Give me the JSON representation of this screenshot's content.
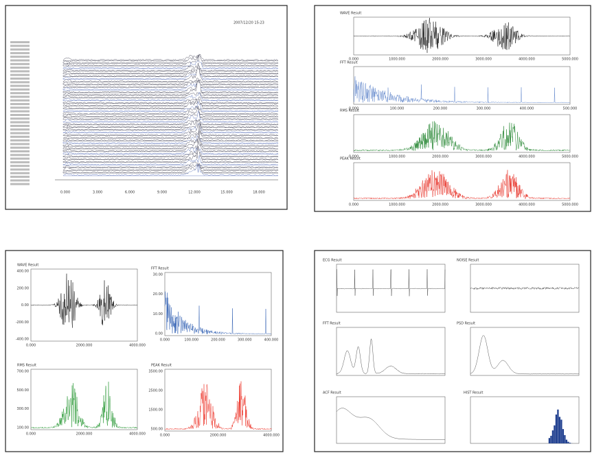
{
  "pages": [
    {
      "header": "2007/12/20 15:23",
      "x_labels": [
        "0.000",
        "3.000",
        "6.000",
        "9.000",
        "12.000",
        "15.000",
        "18.000"
      ]
    },
    {
      "plots": [
        {
          "title": "WAVE Result",
          "x_labels": [
            "0.000",
            "1000.000",
            "2000.000",
            "3000.000",
            "4000.000",
            "5000.000"
          ]
        },
        {
          "title": "FFT Result",
          "x_labels": [
            "0.000",
            "100.000",
            "200.000",
            "300.000",
            "400.000",
            "500.000"
          ]
        },
        {
          "title": "RMS Result",
          "x_labels": [
            "0.000",
            "1000.000",
            "2000.000",
            "3000.000",
            "4000.000",
            "5000.000"
          ]
        },
        {
          "title": "PEAK Result",
          "x_labels": [
            "0.000",
            "1000.000",
            "2000.000",
            "3000.000",
            "4000.000",
            "5000.000"
          ]
        }
      ]
    },
    {
      "plots": [
        {
          "title": "WAVE Result",
          "y_labels": [
            "400.00",
            "200.00",
            "0.00",
            "-200.00",
            "-400.00"
          ],
          "x_labels": [
            "0.000",
            "2000.000",
            "4000.000"
          ]
        },
        {
          "title": "FFT Result",
          "y_labels": [
            "30.00",
            "20.00",
            "10.00",
            "0.00"
          ],
          "x_labels": [
            "0.000",
            "100.000",
            "200.000",
            "300.000",
            "400.000"
          ]
        },
        {
          "title": "RMS Result",
          "y_labels": [
            "700.00",
            "500.00",
            "300.00",
            "100.00"
          ],
          "x_labels": [
            "0.000",
            "2000.000",
            "4000.000"
          ]
        },
        {
          "title": "PEAK Result",
          "y_labels": [
            "3500.00",
            "2500.00",
            "1500.00",
            "500.00"
          ],
          "x_labels": [
            "0.000",
            "2000.000",
            "4000.000"
          ]
        }
      ]
    },
    {
      "plots": [
        {
          "title": "ECG Result"
        },
        {
          "title": "NOISE Result"
        },
        {
          "title": "FFT Result"
        },
        {
          "title": "PSD Result"
        },
        {
          "title": "ACF Result"
        },
        {
          "title": "HIST Result"
        }
      ]
    }
  ]
}
